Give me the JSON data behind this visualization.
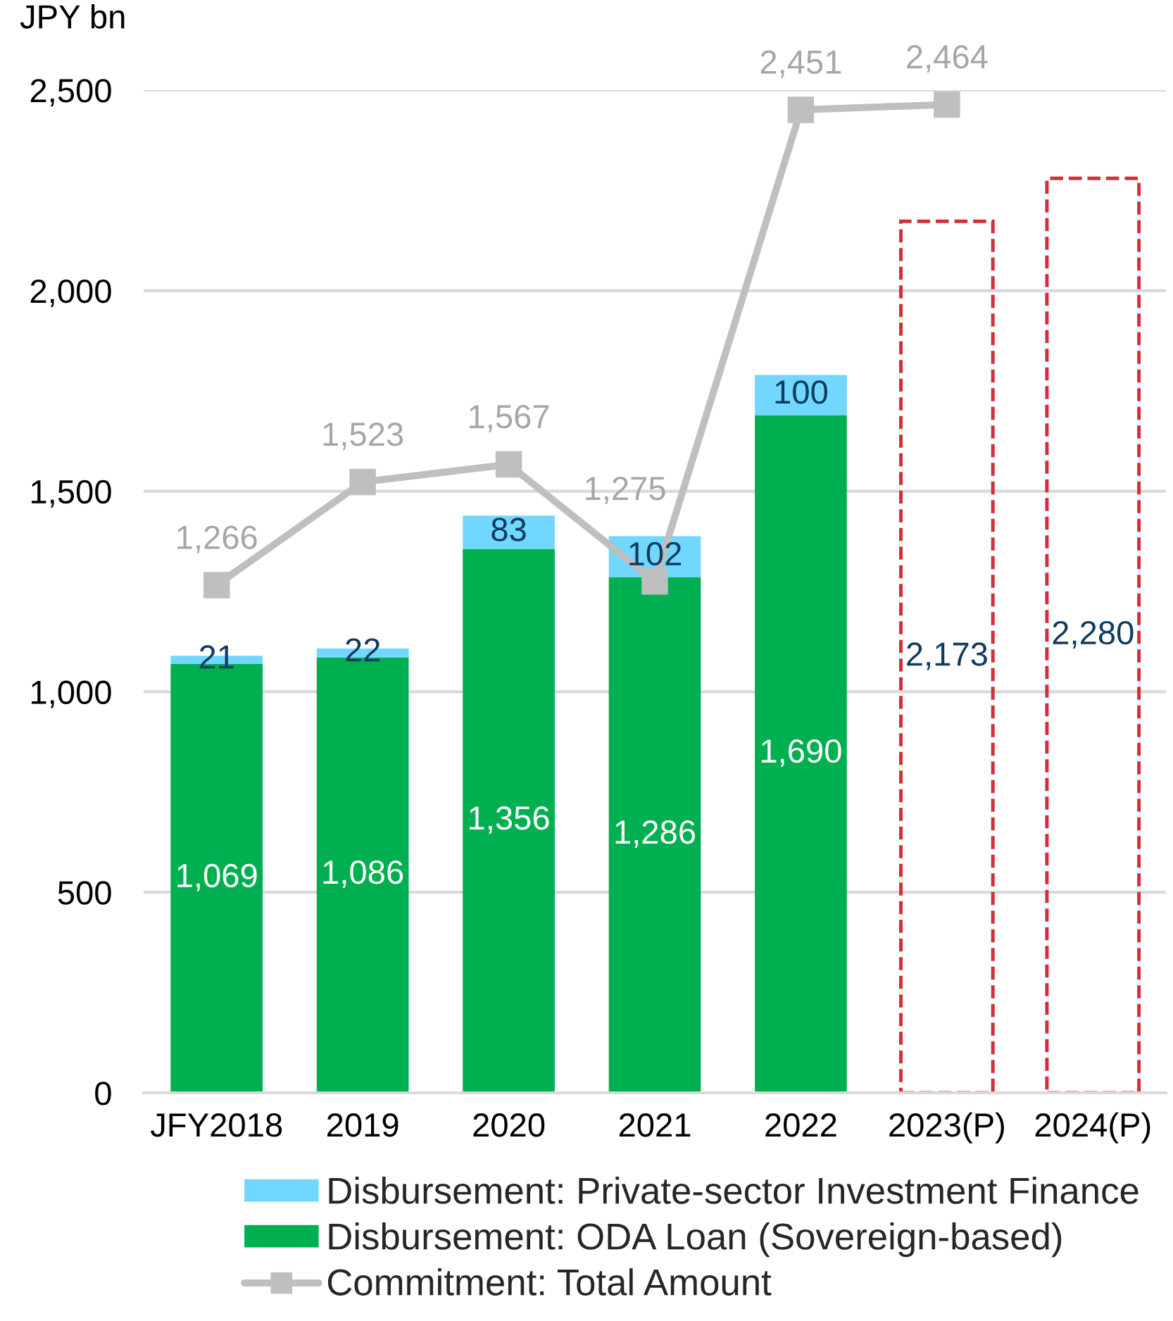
{
  "chart_data": {
    "type": "bar",
    "stacked": true,
    "ylabel": "JPY bn",
    "categories": [
      "JFY2018",
      "2019",
      "2020",
      "2021",
      "2022",
      "2023(P)",
      "2024(P)"
    ],
    "series": [
      {
        "name": "Disbursement: ODA Loan (Sovereign-based)",
        "color": "#00b050",
        "values": [
          1069,
          1086,
          1356,
          1286,
          1690,
          null,
          null
        ],
        "value_labels": [
          "1,069",
          "1,086",
          "1,356",
          "1,286",
          "1,690",
          null,
          null
        ]
      },
      {
        "name": "Disbursement: Private-sector Investment Finance",
        "color": "#71d7ff",
        "values": [
          21,
          22,
          83,
          102,
          100,
          null,
          null
        ],
        "value_labels": [
          "21",
          "22",
          "83",
          "102",
          "100",
          null,
          null
        ]
      },
      {
        "color": "#d32f3a",
        "line_style": "dashed",
        "values": [
          null,
          null,
          null,
          null,
          null,
          2173,
          2280
        ],
        "value_labels": [
          null,
          null,
          null,
          null,
          null,
          "2,173",
          "2,280"
        ]
      },
      {
        "name": "Commitment: Total Amount",
        "type": "line",
        "color": "#bfbfbf",
        "marker": "square",
        "values": [
          1266,
          1523,
          1567,
          1275,
          2451,
          2464,
          null
        ],
        "value_labels": [
          "1,266",
          "1,523",
          "1,567",
          "1,275",
          "2,451",
          "2,464",
          null
        ]
      }
    ],
    "ylim": [
      0,
      2500
    ],
    "yticks": [
      0,
      500,
      {
        "value": 1000,
        "label": "1,000"
      },
      {
        "value": 1500,
        "label": "1,500"
      },
      {
        "value": 2000,
        "label": "2,000"
      },
      {
        "value": 2500,
        "label": "2,500"
      }
    ],
    "grid": "y",
    "legend": "bottom"
  }
}
